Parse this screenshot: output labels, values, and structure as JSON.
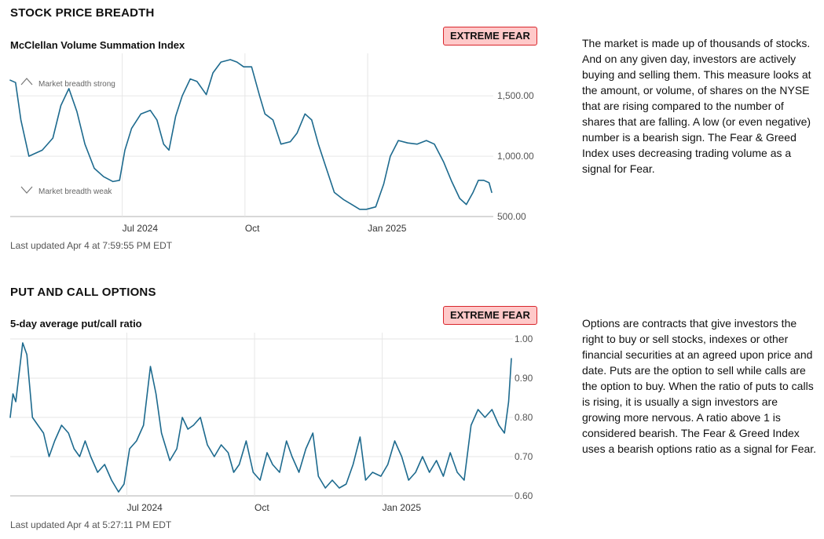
{
  "colors": {
    "line": "#1d6a8e",
    "grid": "#e6e6e6",
    "axis": "#b0b0b0",
    "badge_bg": "#ffc9c9",
    "badge_border": "#d8262c"
  },
  "sections": [
    {
      "title": "STOCK PRICE BREADTH",
      "subtitle": "McClellan Volume Summation Index",
      "badge": "EXTREME FEAR",
      "updated": "Last updated Apr 4 at 7:59:55 PM EDT",
      "description": "The market is made up of thousands of stocks. And on any given day, investors are actively buying and selling them. This measure looks at the amount, or volume, of shares on the NYSE that are rising compared to the number of shares that are falling. A low (or even negative) number is a bearish sign. The Fear & Greed Index uses decreasing trading volume as a signal for Fear."
    },
    {
      "title": "PUT AND CALL OPTIONS",
      "subtitle": "5-day average put/call ratio",
      "badge": "EXTREME FEAR",
      "updated": "Last updated Apr 4 at 5:27:11 PM EDT",
      "description": "Options are contracts that give investors the right to buy or sell stocks, indexes or other financial securities at an agreed upon price and date. Puts are the option to sell while calls are the option to buy. When the ratio of puts to calls is rising, it is usually a sign investors are growing more nervous. A ratio above 1 is considered bearish. The Fear & Greed Index uses a bearish options ratio as a signal for Fear."
    }
  ],
  "chart_data": [
    {
      "type": "line",
      "series": [
        {
          "x": [
            "2024-04-08",
            "2024-04-12",
            "2024-04-16",
            "2024-04-22",
            "2024-04-26",
            "2024-05-02",
            "2024-05-10",
            "2024-05-16",
            "2024-05-22",
            "2024-05-28",
            "2024-06-03",
            "2024-06-10",
            "2024-06-17",
            "2024-06-24",
            "2024-06-29",
            "2024-07-03",
            "2024-07-08",
            "2024-07-15",
            "2024-07-22",
            "2024-07-27",
            "2024-08-01",
            "2024-08-05",
            "2024-08-10",
            "2024-08-15",
            "2024-08-21",
            "2024-08-26",
            "2024-09-02",
            "2024-09-07",
            "2024-09-13",
            "2024-09-20",
            "2024-09-25",
            "2024-09-30",
            "2024-10-06",
            "2024-10-12",
            "2024-10-16",
            "2024-10-22",
            "2024-10-28",
            "2024-11-04",
            "2024-11-09",
            "2024-11-15",
            "2024-11-20",
            "2024-11-25",
            "2024-12-01",
            "2024-12-07",
            "2024-12-14",
            "2024-12-20",
            "2024-12-26",
            "2024-12-31",
            "2025-01-07",
            "2025-01-13",
            "2025-01-18",
            "2025-01-24",
            "2025-01-31",
            "2025-02-07",
            "2025-02-14",
            "2025-02-20",
            "2025-02-27",
            "2025-03-05",
            "2025-03-11",
            "2025-03-16",
            "2025-03-21",
            "2025-03-25",
            "2025-03-29",
            "2025-04-02",
            "2025-04-04"
          ],
          "y": [
            1630,
            1610,
            1300,
            1000,
            1020,
            1050,
            1150,
            1420,
            1560,
            1370,
            1100,
            900,
            830,
            790,
            800,
            1050,
            1230,
            1350,
            1380,
            1300,
            1100,
            1050,
            1330,
            1500,
            1640,
            1620,
            1510,
            1690,
            1780,
            1800,
            1780,
            1740,
            1740,
            1500,
            1350,
            1300,
            1100,
            1120,
            1190,
            1350,
            1300,
            1100,
            900,
            700,
            640,
            600,
            560,
            560,
            580,
            770,
            1000,
            1130,
            1110,
            1100,
            1130,
            1100,
            950,
            790,
            650,
            600,
            700,
            800,
            800,
            780,
            700
          ]
        }
      ],
      "ylim": [
        500,
        1800
      ],
      "yticks": [
        "1,500.00",
        "1,000.00",
        "500.00"
      ],
      "ytick_values": [
        1500,
        1000,
        500
      ],
      "xticks": [
        "Jul 2024",
        "Oct",
        "Jan 2025"
      ],
      "xtick_dates": [
        "2024-07-01",
        "2024-10-01",
        "2025-01-01"
      ],
      "xlim": [
        "2024-04-08",
        "2025-04-04"
      ],
      "annotations": [
        "Market breadth strong",
        "Market breadth weak"
      ]
    },
    {
      "type": "line",
      "series": [
        {
          "x": [
            "2024-04-08",
            "2024-04-10",
            "2024-04-12",
            "2024-04-14",
            "2024-04-17",
            "2024-04-20",
            "2024-04-24",
            "2024-04-28",
            "2024-05-02",
            "2024-05-06",
            "2024-05-10",
            "2024-05-15",
            "2024-05-20",
            "2024-05-24",
            "2024-05-28",
            "2024-06-01",
            "2024-06-05",
            "2024-06-10",
            "2024-06-15",
            "2024-06-20",
            "2024-06-25",
            "2024-06-29",
            "2024-07-03",
            "2024-07-08",
            "2024-07-13",
            "2024-07-18",
            "2024-07-22",
            "2024-07-26",
            "2024-08-01",
            "2024-08-06",
            "2024-08-10",
            "2024-08-14",
            "2024-08-18",
            "2024-08-23",
            "2024-08-28",
            "2024-09-02",
            "2024-09-07",
            "2024-09-12",
            "2024-09-16",
            "2024-09-20",
            "2024-09-25",
            "2024-09-30",
            "2024-10-05",
            "2024-10-10",
            "2024-10-14",
            "2024-10-19",
            "2024-10-24",
            "2024-10-28",
            "2024-11-02",
            "2024-11-07",
            "2024-11-12",
            "2024-11-16",
            "2024-11-21",
            "2024-11-26",
            "2024-12-01",
            "2024-12-06",
            "2024-12-11",
            "2024-12-16",
            "2024-12-20",
            "2024-12-25",
            "2024-12-31",
            "2025-01-05",
            "2025-01-10",
            "2025-01-15",
            "2025-01-20",
            "2025-01-25",
            "2025-01-30",
            "2025-02-04",
            "2025-02-09",
            "2025-02-14",
            "2025-02-19",
            "2025-02-24",
            "2025-03-01",
            "2025-03-06",
            "2025-03-11",
            "2025-03-16",
            "2025-03-21",
            "2025-03-26",
            "2025-03-30",
            "2025-04-02",
            "2025-04-04"
          ],
          "y": [
            0.8,
            0.86,
            0.84,
            0.9,
            0.99,
            0.96,
            0.8,
            0.78,
            0.76,
            0.7,
            0.74,
            0.78,
            0.76,
            0.72,
            0.7,
            0.74,
            0.7,
            0.66,
            0.68,
            0.64,
            0.61,
            0.63,
            0.72,
            0.74,
            0.78,
            0.93,
            0.86,
            0.76,
            0.69,
            0.72,
            0.8,
            0.77,
            0.78,
            0.8,
            0.73,
            0.7,
            0.73,
            0.71,
            0.66,
            0.68,
            0.74,
            0.66,
            0.64,
            0.71,
            0.68,
            0.66,
            0.74,
            0.7,
            0.66,
            0.72,
            0.76,
            0.65,
            0.62,
            0.64,
            0.62,
            0.63,
            0.68,
            0.75,
            0.64,
            0.66,
            0.65,
            0.68,
            0.74,
            0.7,
            0.64,
            0.66,
            0.7,
            0.66,
            0.69,
            0.65,
            0.71,
            0.66,
            0.64,
            0.78,
            0.82,
            0.8,
            0.82,
            0.78,
            0.76,
            0.84,
            0.95
          ]
        }
      ],
      "ylim": [
        0.6,
        1.0
      ],
      "yticks": [
        "1.00",
        "0.90",
        "0.80",
        "0.70",
        "0.60"
      ],
      "ytick_values": [
        1.0,
        0.9,
        0.8,
        0.7,
        0.6
      ],
      "xticks": [
        "Jul 2024",
        "Oct",
        "Jan 2025"
      ],
      "xtick_dates": [
        "2024-07-01",
        "2024-10-01",
        "2025-01-01"
      ],
      "xlim": [
        "2024-04-08",
        "2025-04-04"
      ]
    }
  ]
}
